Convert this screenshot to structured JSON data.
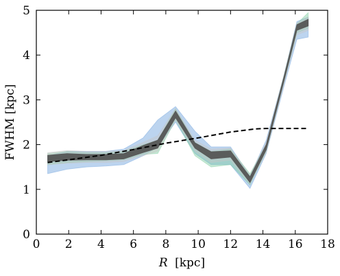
{
  "chart_data": {
    "type": "line",
    "xlabel": {
      "symbol": "R",
      "unit": "[kpc]"
    },
    "ylabel": "FWHM [kpc]",
    "xlim": [
      0,
      18
    ],
    "ylim": [
      0,
      5
    ],
    "xticks": [
      0,
      2,
      4,
      6,
      8,
      10,
      12,
      14,
      16,
      18
    ],
    "yticks": [
      0,
      1,
      2,
      3,
      4,
      5
    ],
    "xtick_labels": [
      "0",
      "2",
      "4",
      "6",
      "8",
      "10",
      "12",
      "14",
      "16",
      "18"
    ],
    "ytick_labels": [
      "0",
      "1",
      "2",
      "3",
      "4",
      "5"
    ],
    "grid": false,
    "series": [
      {
        "color": "#6a9fdc",
        "style": "band",
        "x": [
          0.7,
          1.9,
          3.1,
          4.3,
          5.4,
          6.6,
          7.5,
          8.6,
          9.8,
          10.8,
          12.0,
          13.2,
          14.2,
          15.3,
          16.1,
          16.8
        ],
        "lower": [
          1.35,
          1.45,
          1.5,
          1.52,
          1.55,
          1.75,
          1.95,
          2.5,
          1.8,
          1.55,
          1.55,
          1.02,
          1.8,
          3.3,
          4.35,
          4.4
        ],
        "upper": [
          1.75,
          1.85,
          1.85,
          1.85,
          1.9,
          2.15,
          2.55,
          2.85,
          2.3,
          1.95,
          1.95,
          1.3,
          2.1,
          3.55,
          4.75,
          4.85
        ]
      },
      {
        "color": "#7ecba0",
        "style": "band",
        "x": [
          0.7,
          1.9,
          3.1,
          4.3,
          5.4,
          6.6,
          7.5,
          8.6,
          9.8,
          10.8,
          12.0,
          13.2,
          14.2,
          15.3,
          16.1,
          16.8
        ],
        "lower": [
          1.55,
          1.6,
          1.62,
          1.64,
          1.66,
          1.78,
          1.8,
          2.55,
          1.75,
          1.5,
          1.55,
          1.1,
          1.85,
          3.4,
          4.5,
          4.6
        ],
        "upper": [
          1.8,
          1.85,
          1.82,
          1.82,
          1.85,
          2.0,
          2.1,
          2.8,
          2.05,
          1.85,
          1.9,
          1.35,
          2.0,
          3.55,
          4.7,
          4.95
        ]
      },
      {
        "color": "#c8c8c8",
        "style": "band",
        "x": [
          0.7,
          1.9,
          3.1,
          4.3,
          5.4,
          6.6,
          7.5,
          8.6,
          9.8,
          10.8,
          12.0,
          13.2,
          14.2,
          15.3,
          16.1,
          16.8
        ],
        "lower": [
          1.55,
          1.58,
          1.6,
          1.6,
          1.62,
          1.75,
          1.85,
          2.55,
          1.85,
          1.6,
          1.65,
          1.12,
          1.82,
          3.35,
          4.45,
          4.55
        ],
        "upper": [
          1.82,
          1.87,
          1.85,
          1.85,
          1.87,
          2.05,
          2.2,
          2.8,
          2.1,
          1.9,
          1.92,
          1.32,
          2.05,
          3.55,
          4.72,
          4.85
        ]
      },
      {
        "color": "#555555",
        "style": "band",
        "x": [
          0.7,
          1.9,
          3.1,
          4.3,
          5.4,
          6.6,
          7.5,
          8.6,
          9.8,
          10.8,
          12.0,
          13.2,
          14.2,
          15.3,
          16.1,
          16.8
        ],
        "lower": [
          1.62,
          1.65,
          1.66,
          1.66,
          1.68,
          1.82,
          1.92,
          2.6,
          1.92,
          1.68,
          1.72,
          1.15,
          1.88,
          3.42,
          4.55,
          4.65
        ],
        "upper": [
          1.76,
          1.8,
          1.78,
          1.78,
          1.8,
          1.98,
          2.1,
          2.75,
          2.04,
          1.84,
          1.86,
          1.28,
          2.0,
          3.52,
          4.68,
          4.8
        ]
      },
      {
        "color": "#000000",
        "style": "dashed",
        "x": [
          0.7,
          2.0,
          4.0,
          6.0,
          8.0,
          10.0,
          12.0,
          13.5,
          14.2,
          15.0,
          16.0,
          16.8
        ],
        "y": [
          1.6,
          1.66,
          1.76,
          1.89,
          2.03,
          2.15,
          2.28,
          2.35,
          2.36,
          2.36,
          2.36,
          2.36
        ]
      }
    ]
  }
}
